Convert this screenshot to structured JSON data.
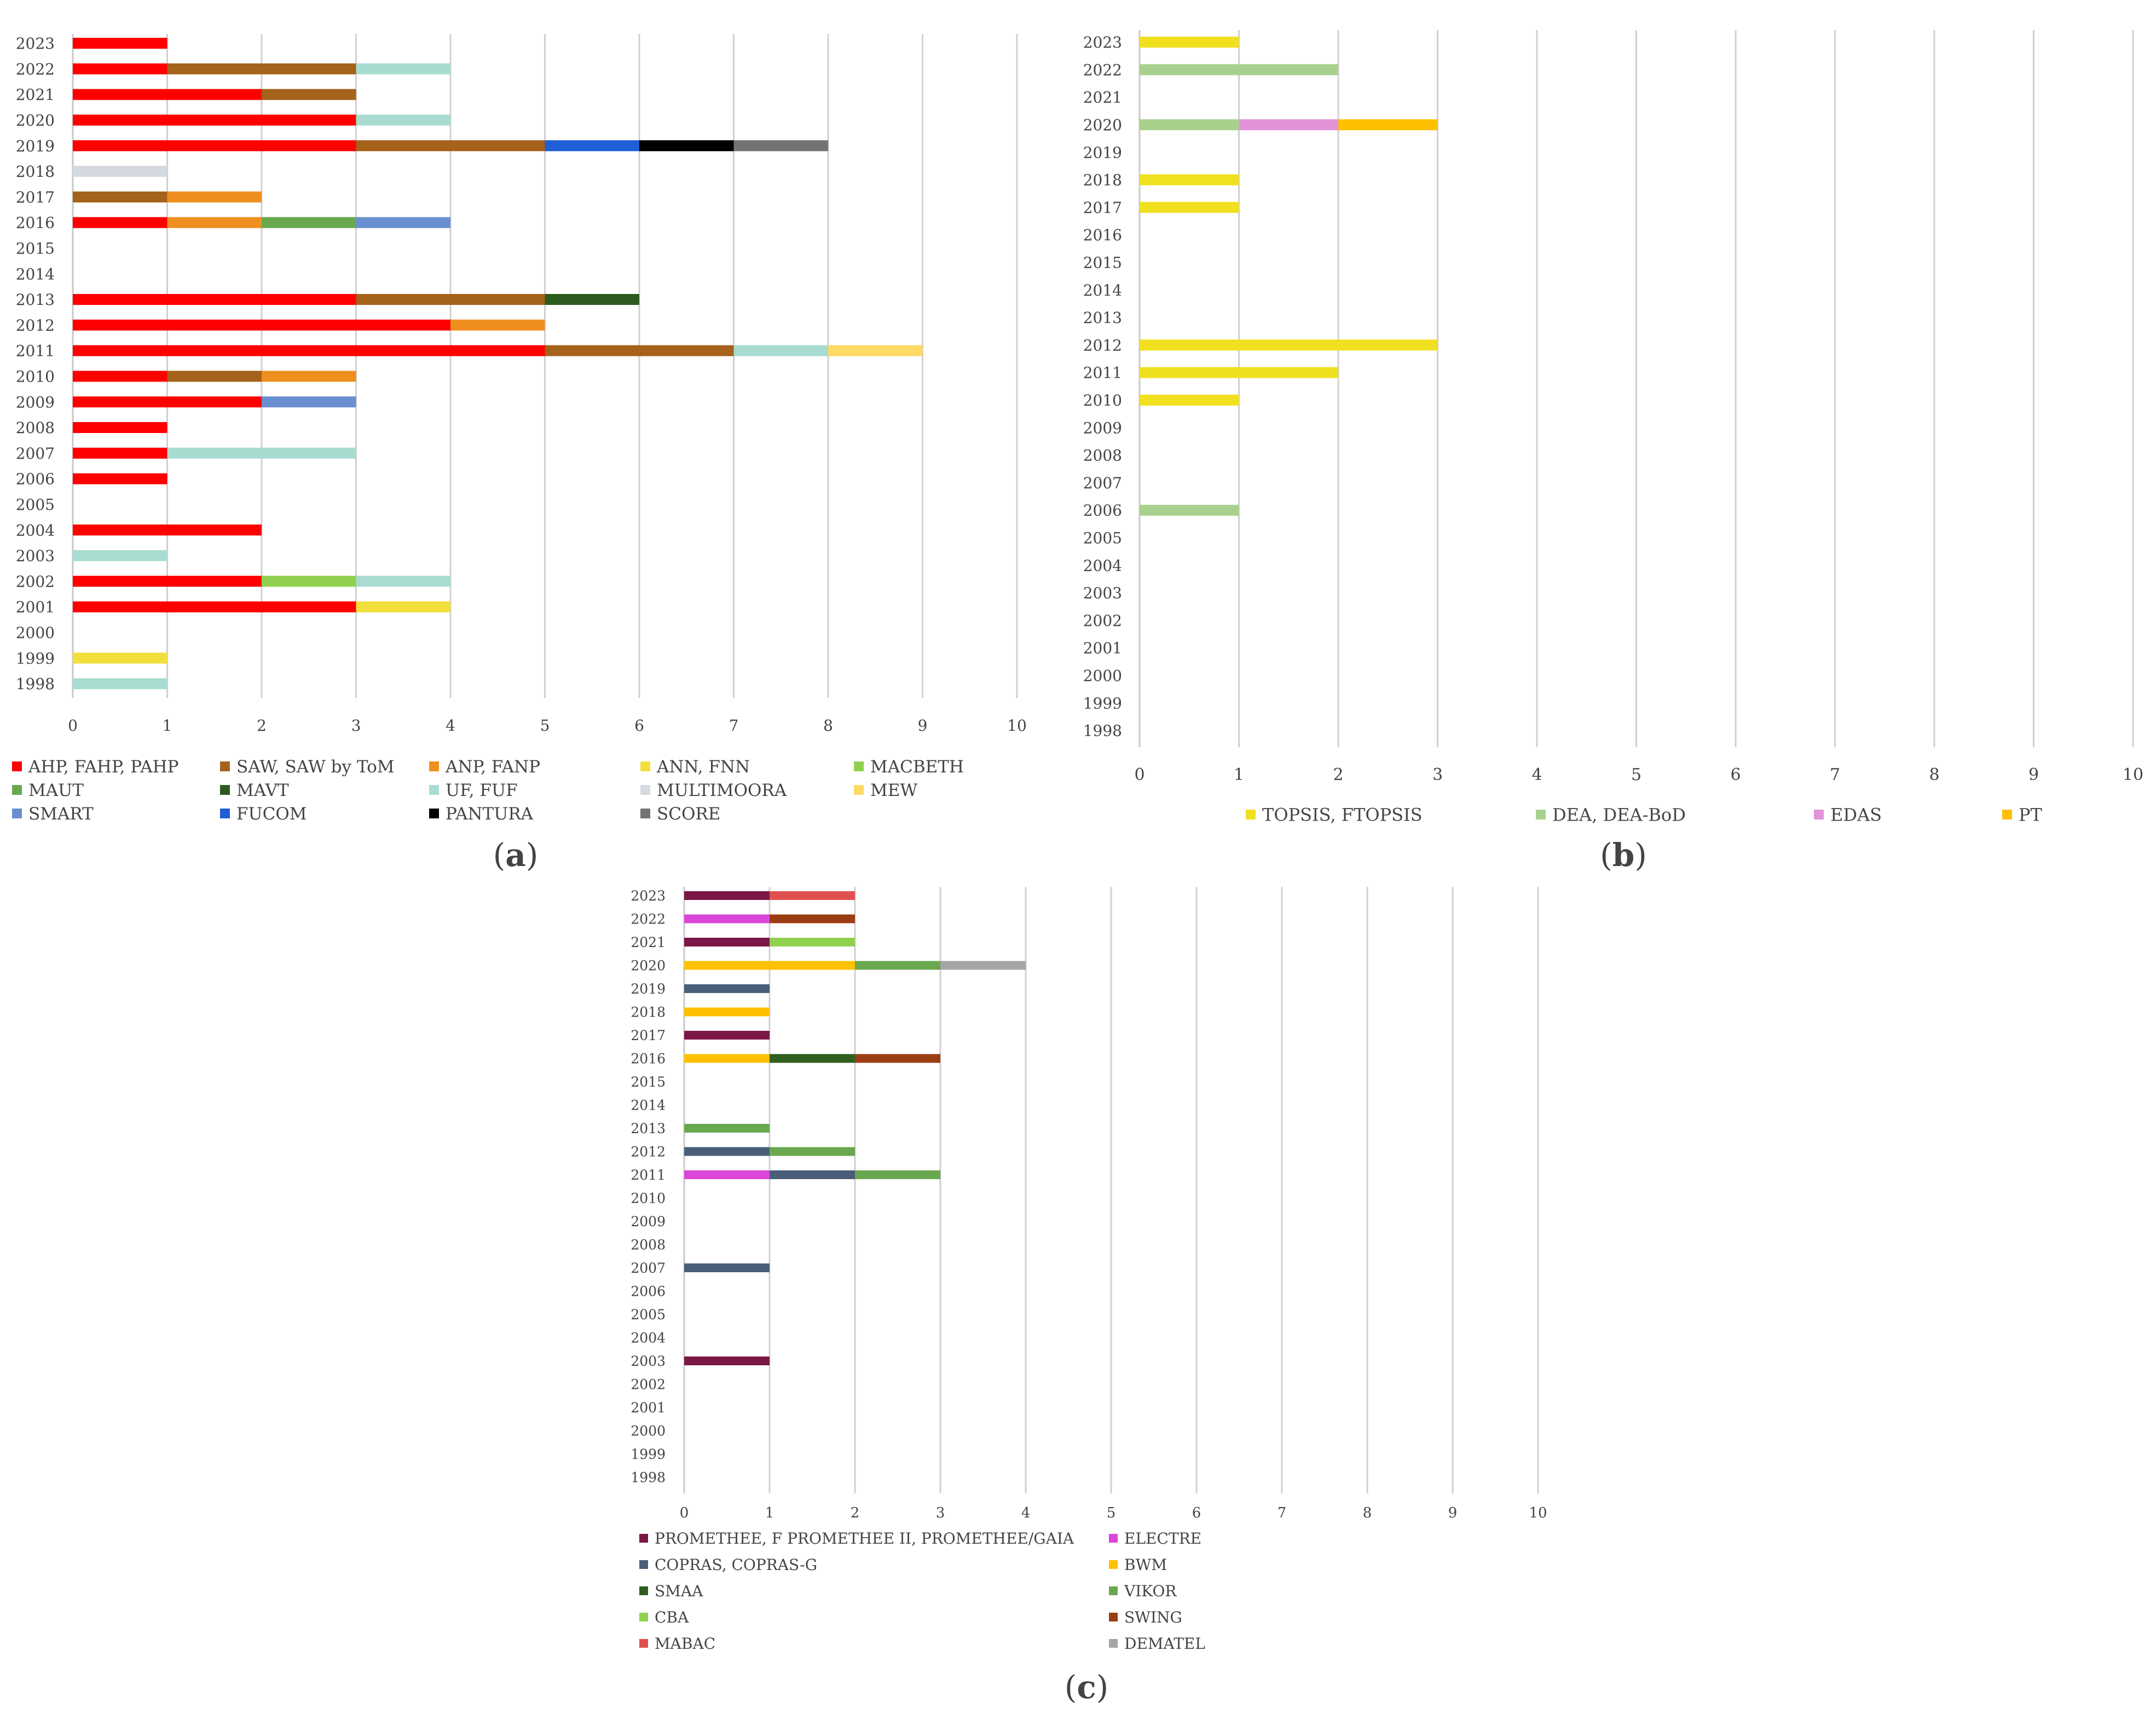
{
  "chart_data": [
    {
      "type": "bar",
      "stacked": true,
      "orientation": "horizontal",
      "panel_label": "(a)",
      "panel_letter": "a",
      "xlim": [
        0,
        10
      ],
      "x_ticks": [
        "0",
        "1",
        "2",
        "3",
        "4",
        "5",
        "6",
        "7",
        "8",
        "9",
        "10"
      ],
      "categories": [
        "2023",
        "2022",
        "2021",
        "2020",
        "2019",
        "2018",
        "2017",
        "2016",
        "2015",
        "2014",
        "2013",
        "2012",
        "2011",
        "2010",
        "2009",
        "2008",
        "2007",
        "2006",
        "2005",
        "2004",
        "2003",
        "2002",
        "2001",
        "2000",
        "1999",
        "1998"
      ],
      "legend_position": "bottom",
      "series": [
        {
          "name": "AHP, FAHP, PAHP",
          "color": "#ff0000",
          "values": [
            1,
            1,
            2,
            3,
            3,
            0,
            0,
            1,
            0,
            0,
            3,
            4,
            5,
            1,
            2,
            1,
            1,
            1,
            0,
            2,
            0,
            2,
            3,
            0,
            0,
            0
          ]
        },
        {
          "name": "SAW, SAW by ToM",
          "color": "#a5621a",
          "values": [
            0,
            2,
            1,
            0,
            2,
            0,
            1,
            0,
            0,
            0,
            2,
            0,
            2,
            1,
            0,
            0,
            0,
            0,
            0,
            0,
            0,
            0,
            0,
            0,
            0,
            0
          ]
        },
        {
          "name": "ANP, FANP",
          "color": "#ef8f1f",
          "values": [
            0,
            0,
            0,
            0,
            0,
            0,
            1,
            1,
            0,
            0,
            0,
            1,
            0,
            1,
            0,
            0,
            0,
            0,
            0,
            0,
            0,
            0,
            0,
            0,
            0,
            0
          ]
        },
        {
          "name": "ANN, FNN",
          "color": "#f2df3c",
          "values": [
            0,
            0,
            0,
            0,
            0,
            0,
            0,
            0,
            0,
            0,
            0,
            0,
            0,
            0,
            0,
            0,
            0,
            0,
            0,
            0,
            0,
            0,
            1,
            0,
            1,
            0
          ]
        },
        {
          "name": "MACBETH",
          "color": "#8fd14f",
          "values": [
            0,
            0,
            0,
            0,
            0,
            0,
            0,
            0,
            0,
            0,
            0,
            0,
            0,
            0,
            0,
            0,
            0,
            0,
            0,
            0,
            0,
            1,
            0,
            0,
            0,
            0
          ]
        },
        {
          "name": "MAUT",
          "color": "#6aa84f",
          "values": [
            0,
            0,
            0,
            0,
            0,
            0,
            0,
            1,
            0,
            0,
            0,
            0,
            0,
            0,
            0,
            0,
            0,
            0,
            0,
            0,
            0,
            0,
            0,
            0,
            0,
            0
          ]
        },
        {
          "name": "MAVT",
          "color": "#2d5a1f",
          "values": [
            0,
            0,
            0,
            0,
            0,
            0,
            0,
            0,
            0,
            0,
            1,
            0,
            0,
            0,
            0,
            0,
            0,
            0,
            0,
            0,
            0,
            0,
            0,
            0,
            0,
            0
          ]
        },
        {
          "name": "UF, FUF",
          "color": "#a8dcd1",
          "values": [
            0,
            1,
            0,
            1,
            0,
            0,
            0,
            0,
            0,
            0,
            0,
            0,
            1,
            0,
            0,
            0,
            2,
            0,
            0,
            0,
            1,
            1,
            0,
            0,
            0,
            1
          ]
        },
        {
          "name": "MULTIMOORA",
          "color": "#d5d9e0",
          "values": [
            0,
            0,
            0,
            0,
            0,
            1,
            0,
            0,
            0,
            0,
            0,
            0,
            0,
            0,
            0,
            0,
            0,
            0,
            0,
            0,
            0,
            0,
            0,
            0,
            0,
            0
          ]
        },
        {
          "name": "MEW",
          "color": "#ffd966",
          "values": [
            0,
            0,
            0,
            0,
            0,
            0,
            0,
            0,
            0,
            0,
            0,
            0,
            1,
            0,
            0,
            0,
            0,
            0,
            0,
            0,
            0,
            0,
            0,
            0,
            0,
            0
          ]
        },
        {
          "name": "SMART",
          "color": "#6a8fd0",
          "values": [
            0,
            0,
            0,
            0,
            0,
            0,
            0,
            1,
            0,
            0,
            0,
            0,
            0,
            0,
            1,
            0,
            0,
            0,
            0,
            0,
            0,
            0,
            0,
            0,
            0,
            0
          ]
        },
        {
          "name": "FUCOM",
          "color": "#1f5fd6",
          "values": [
            0,
            0,
            0,
            0,
            1,
            0,
            0,
            0,
            0,
            0,
            0,
            0,
            0,
            0,
            0,
            0,
            0,
            0,
            0,
            0,
            0,
            0,
            0,
            0,
            0,
            0
          ]
        },
        {
          "name": "PANTURA",
          "color": "#000000",
          "values": [
            0,
            0,
            0,
            0,
            1,
            0,
            0,
            0,
            0,
            0,
            0,
            0,
            0,
            0,
            0,
            0,
            0,
            0,
            0,
            0,
            0,
            0,
            0,
            0,
            0,
            0
          ]
        },
        {
          "name": "SCORE",
          "color": "#737373",
          "values": [
            0,
            0,
            0,
            0,
            1,
            0,
            0,
            0,
            0,
            0,
            0,
            0,
            0,
            0,
            0,
            0,
            0,
            0,
            0,
            0,
            0,
            0,
            0,
            0,
            0,
            0
          ]
        }
      ]
    },
    {
      "type": "bar",
      "stacked": true,
      "orientation": "horizontal",
      "panel_label": "(b)",
      "panel_letter": "b",
      "xlim": [
        0,
        10
      ],
      "x_ticks": [
        "0",
        "1",
        "2",
        "3",
        "4",
        "5",
        "6",
        "7",
        "8",
        "9",
        "10"
      ],
      "categories": [
        "2023",
        "2022",
        "2021",
        "2020",
        "2019",
        "2018",
        "2017",
        "2016",
        "2015",
        "2014",
        "2013",
        "2012",
        "2011",
        "2010",
        "2009",
        "2008",
        "2007",
        "2006",
        "2005",
        "2004",
        "2003",
        "2002",
        "2001",
        "2000",
        "1999",
        "1998"
      ],
      "legend_position": "bottom",
      "series": [
        {
          "name": "TOPSIS, FTOPSIS",
          "color": "#f0e020",
          "values": [
            1,
            0,
            0,
            0,
            0,
            1,
            1,
            0,
            0,
            0,
            0,
            3,
            2,
            1,
            0,
            0,
            0,
            0,
            0,
            0,
            0,
            0,
            0,
            0,
            0,
            0
          ]
        },
        {
          "name": "DEA, DEA-BoD",
          "color": "#a9d18e",
          "values": [
            0,
            2,
            0,
            1,
            0,
            0,
            0,
            0,
            0,
            0,
            0,
            0,
            0,
            0,
            0,
            0,
            0,
            1,
            0,
            0,
            0,
            0,
            0,
            0,
            0,
            0
          ]
        },
        {
          "name": "EDAS",
          "color": "#e393d7",
          "values": [
            0,
            0,
            0,
            1,
            0,
            0,
            0,
            0,
            0,
            0,
            0,
            0,
            0,
            0,
            0,
            0,
            0,
            0,
            0,
            0,
            0,
            0,
            0,
            0,
            0,
            0
          ]
        },
        {
          "name": "PT",
          "color": "#ffc000",
          "values": [
            0,
            0,
            0,
            1,
            0,
            0,
            0,
            0,
            0,
            0,
            0,
            0,
            0,
            0,
            0,
            0,
            0,
            0,
            0,
            0,
            0,
            0,
            0,
            0,
            0,
            0
          ]
        }
      ]
    },
    {
      "type": "bar",
      "stacked": true,
      "orientation": "horizontal",
      "panel_label": "(c)",
      "panel_letter": "c",
      "xlim": [
        0,
        10
      ],
      "x_ticks": [
        "0",
        "1",
        "2",
        "3",
        "4",
        "5",
        "6",
        "7",
        "8",
        "9",
        "10"
      ],
      "categories": [
        "2023",
        "2022",
        "2021",
        "2020",
        "2019",
        "2018",
        "2017",
        "2016",
        "2015",
        "2014",
        "2013",
        "2012",
        "2011",
        "2010",
        "2009",
        "2008",
        "2007",
        "2006",
        "2005",
        "2004",
        "2003",
        "2002",
        "2001",
        "2000",
        "1999",
        "1998"
      ],
      "legend_position": "bottom",
      "series": [
        {
          "name": "PROMETHEE, F PROMETHEE II, PROMETHEE/GAIA",
          "color": "#7a1747",
          "values": [
            1,
            0,
            1,
            0,
            0,
            0,
            1,
            0,
            0,
            0,
            0,
            0,
            0,
            0,
            0,
            0,
            0,
            0,
            0,
            0,
            1,
            0,
            0,
            0,
            0,
            0
          ]
        },
        {
          "name": "ELECTRE",
          "color": "#d946d9",
          "values": [
            0,
            1,
            0,
            0,
            0,
            0,
            0,
            0,
            0,
            0,
            0,
            0,
            1,
            0,
            0,
            0,
            0,
            0,
            0,
            0,
            0,
            0,
            0,
            0,
            0,
            0
          ]
        },
        {
          "name": "COPRAS, COPRAS-G",
          "color": "#4a5e7a",
          "values": [
            0,
            0,
            0,
            0,
            1,
            0,
            0,
            0,
            0,
            0,
            0,
            1,
            1,
            0,
            0,
            0,
            1,
            0,
            0,
            0,
            0,
            0,
            0,
            0,
            0,
            0
          ]
        },
        {
          "name": "BWM",
          "color": "#ffc000",
          "values": [
            0,
            0,
            0,
            2,
            0,
            1,
            0,
            1,
            0,
            0,
            0,
            0,
            0,
            0,
            0,
            0,
            0,
            0,
            0,
            0,
            0,
            0,
            0,
            0,
            0,
            0
          ]
        },
        {
          "name": "SMAA",
          "color": "#2f5e1f",
          "values": [
            0,
            0,
            0,
            0,
            0,
            0,
            0,
            1,
            0,
            0,
            0,
            0,
            0,
            0,
            0,
            0,
            0,
            0,
            0,
            0,
            0,
            0,
            0,
            0,
            0,
            0
          ]
        },
        {
          "name": "VIKOR",
          "color": "#6aa84f",
          "values": [
            0,
            0,
            0,
            1,
            0,
            0,
            0,
            0,
            0,
            0,
            1,
            1,
            1,
            0,
            0,
            0,
            0,
            0,
            0,
            0,
            0,
            0,
            0,
            0,
            0,
            0
          ]
        },
        {
          "name": "CBA",
          "color": "#8fd14f",
          "values": [
            0,
            0,
            1,
            0,
            0,
            0,
            0,
            0,
            0,
            0,
            0,
            0,
            0,
            0,
            0,
            0,
            0,
            0,
            0,
            0,
            0,
            0,
            0,
            0,
            0,
            0
          ]
        },
        {
          "name": "SWING",
          "color": "#9b3d12",
          "values": [
            0,
            1,
            0,
            0,
            0,
            0,
            0,
            1,
            0,
            0,
            0,
            0,
            0,
            0,
            0,
            0,
            0,
            0,
            0,
            0,
            0,
            0,
            0,
            0,
            0,
            0
          ]
        },
        {
          "name": "MABAC",
          "color": "#e05050",
          "values": [
            1,
            0,
            0,
            0,
            0,
            0,
            0,
            0,
            0,
            0,
            0,
            0,
            0,
            0,
            0,
            0,
            0,
            0,
            0,
            0,
            0,
            0,
            0,
            0,
            0,
            0
          ]
        },
        {
          "name": "DEMATEL",
          "color": "#a6a6a6",
          "values": [
            0,
            0,
            0,
            1,
            0,
            0,
            0,
            0,
            0,
            0,
            0,
            0,
            0,
            0,
            0,
            0,
            0,
            0,
            0,
            0,
            0,
            0,
            0,
            0,
            0,
            0
          ]
        }
      ]
    }
  ]
}
